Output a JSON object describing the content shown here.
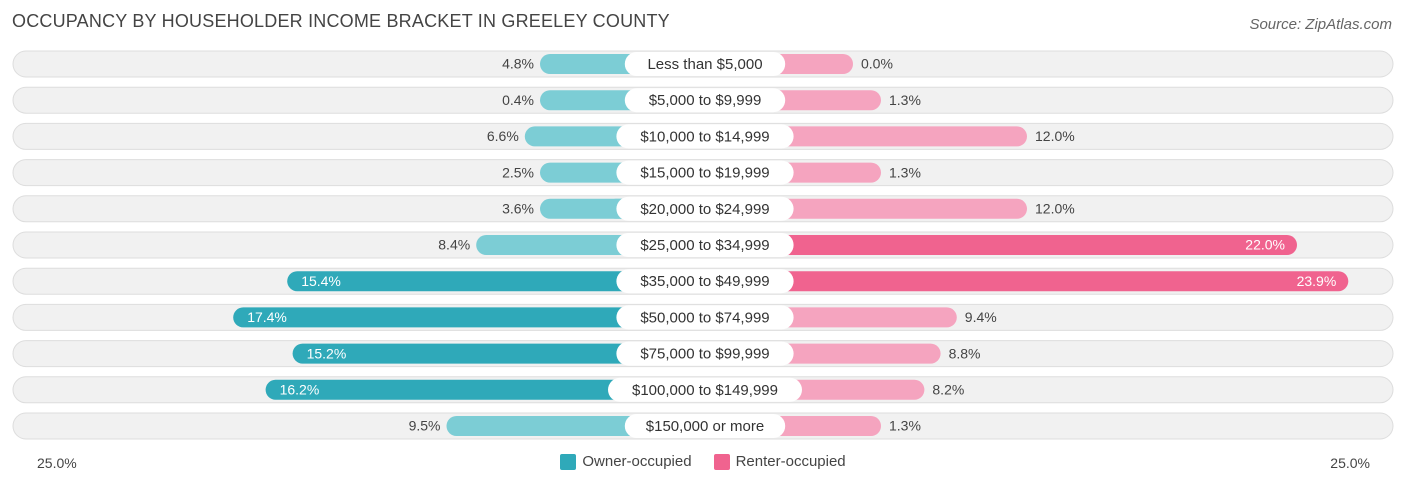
{
  "chart_data": {
    "type": "bar",
    "orientation": "diverging-horizontal",
    "title": "OCCUPANCY BY HOUSEHOLDER INCOME BRACKET IN GREELEY COUNTY",
    "source": "Source: ZipAtlas.com",
    "categories": [
      "Less than $5,000",
      "$5,000 to $9,999",
      "$10,000 to $14,999",
      "$15,000 to $19,999",
      "$20,000 to $24,999",
      "$25,000 to $34,999",
      "$35,000 to $49,999",
      "$50,000 to $74,999",
      "$75,000 to $99,999",
      "$100,000 to $149,999",
      "$150,000 or more"
    ],
    "series": [
      {
        "name": "Owner-occupied",
        "values": [
          4.8,
          0.4,
          6.6,
          2.5,
          3.6,
          8.4,
          15.4,
          17.4,
          15.2,
          16.2,
          9.5
        ],
        "labels": [
          "4.8%",
          "0.4%",
          "6.6%",
          "2.5%",
          "3.6%",
          "8.4%",
          "15.4%",
          "17.4%",
          "15.2%",
          "16.2%",
          "9.5%"
        ]
      },
      {
        "name": "Renter-occupied",
        "values": [
          0.0,
          1.3,
          12.0,
          1.3,
          12.0,
          22.0,
          23.9,
          9.4,
          8.8,
          8.2,
          1.3
        ],
        "labels": [
          "0.0%",
          "1.3%",
          "12.0%",
          "1.3%",
          "12.0%",
          "22.0%",
          "23.9%",
          "9.4%",
          "8.8%",
          "8.2%",
          "1.3%"
        ]
      }
    ],
    "axis_min_label": "25.0%",
    "axis_max_label": "25.0%",
    "xlim": [
      -25,
      25
    ],
    "colors": {
      "owner_light": "#7ccdd5",
      "owner_dark": "#2fa9b9",
      "renter_light": "#f5a4bf",
      "renter_dark": "#f0638f",
      "track": "#f1f1f1",
      "track_border": "#dddddd"
    }
  }
}
